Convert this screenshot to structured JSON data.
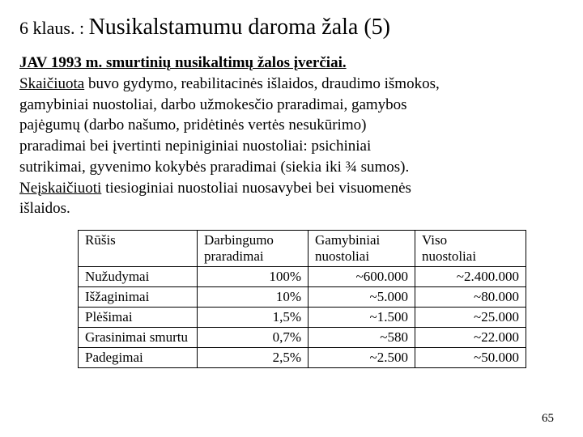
{
  "title": {
    "prefix": "6 klaus. : ",
    "main": "Nusikalstamumu daroma žala (5)"
  },
  "body": {
    "line1_bold_u": "JAV 1993 m. smurtinių nusikaltimų žalos įverčiai.",
    "line2_u": "Skaičiuota",
    "line2_rest": " buvo gydymo, reabilitacinės išlaidos, draudimo išmokos,",
    "line3": "gamybiniai nuostoliai, darbo užmokesčio praradimai, gamybos",
    "line4": "pajėgumų (darbo našumo, pridėtinės vertės nesukūrimo)",
    "line5": "praradimai bei įvertinti nepiniginiai nuostoliai: psichiniai",
    "line6": "sutrikimai, gyvenimo kokybės praradimai (siekia iki ¾ sumos).",
    "line7_u": "Neįskaičiuoti",
    "line7_rest": " tiesioginiai nuostoliai nuosavybei bei visuomenės",
    "line8": "išlaidos."
  },
  "table": {
    "headers": {
      "c1": "Rūšis",
      "c2a": "Darbingumo",
      "c2b": "praradimai",
      "c3a": "Gamybiniai",
      "c3b": "nuostoliai",
      "c4a": "Viso",
      "c4b": "nuostoliai"
    },
    "rows": [
      {
        "c1": "Nužudymai",
        "c2": "100%",
        "c3": "~600.000",
        "c4": "~2.400.000"
      },
      {
        "c1": "Išžaginimai",
        "c2": "10%",
        "c3": "~5.000",
        "c4": "~80.000"
      },
      {
        "c1": "Plėšimai",
        "c2": "1,5%",
        "c3": "~1.500",
        "c4": "~25.000"
      },
      {
        "c1": "Grasinimai smurtu",
        "c2": "0,7%",
        "c3": "~580",
        "c4": "~22.000"
      },
      {
        "c1": "Padegimai",
        "c2": "2,5%",
        "c3": "~2.500",
        "c4": "~50.000"
      }
    ]
  },
  "page_number": "65",
  "colors": {
    "text": "#000000",
    "background": "#ffffff",
    "border": "#000000"
  }
}
